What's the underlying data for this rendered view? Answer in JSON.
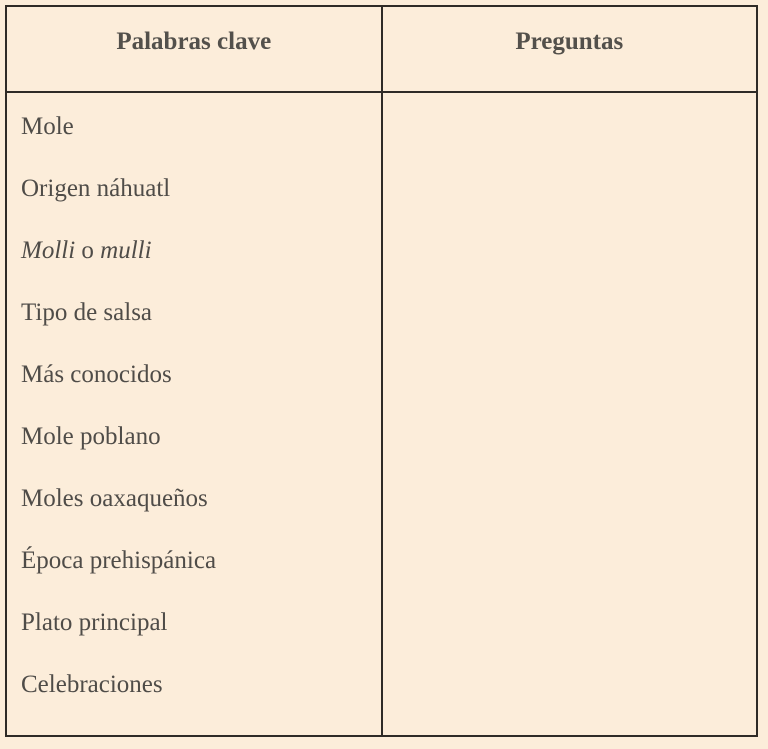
{
  "colors": {
    "background": "#fcedda",
    "border": "#2f2b27",
    "header_text": "#53504b",
    "body_text": "#4f4c48"
  },
  "table": {
    "columns": [
      {
        "header": "Palabras clave"
      },
      {
        "header": "Preguntas"
      }
    ],
    "keywords": [
      {
        "segments": [
          {
            "text": "Mole",
            "italic": false
          }
        ]
      },
      {
        "segments": [
          {
            "text": "Origen náhuatl",
            "italic": false
          }
        ]
      },
      {
        "segments": [
          {
            "text": "Molli",
            "italic": true
          },
          {
            "text": " o ",
            "italic": false
          },
          {
            "text": "mulli",
            "italic": true
          }
        ]
      },
      {
        "segments": [
          {
            "text": "Tipo de salsa",
            "italic": false
          }
        ]
      },
      {
        "segments": [
          {
            "text": "Más conocidos",
            "italic": false
          }
        ]
      },
      {
        "segments": [
          {
            "text": "Mole poblano",
            "italic": false
          }
        ]
      },
      {
        "segments": [
          {
            "text": "Moles oaxaqueños",
            "italic": false
          }
        ]
      },
      {
        "segments": [
          {
            "text": "Época prehispánica",
            "italic": false
          }
        ]
      },
      {
        "segments": [
          {
            "text": "Plato principal",
            "italic": false
          }
        ]
      },
      {
        "segments": [
          {
            "text": "Celebraciones",
            "italic": false
          }
        ]
      }
    ],
    "questions": []
  }
}
